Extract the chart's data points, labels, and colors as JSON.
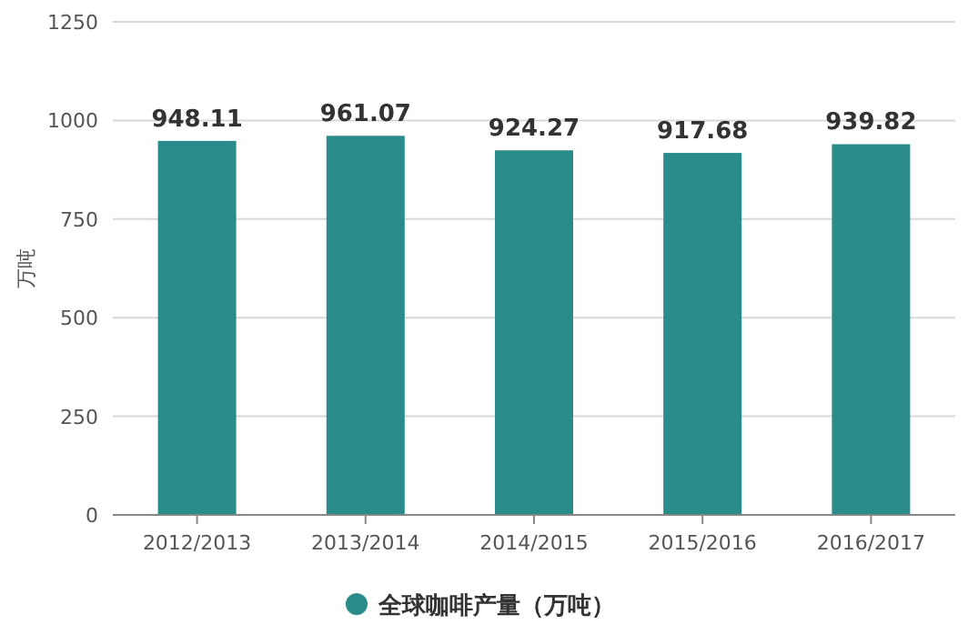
{
  "chart_data": {
    "type": "bar",
    "ylabel": "万吨",
    "categories": [
      "2012/2013",
      "2013/2014",
      "2014/2015",
      "2015/2016",
      "2016/2017"
    ],
    "series": [
      {
        "name": "全球咖啡产量（万吨）",
        "color": "#2a8c8a",
        "values": [
          948.11,
          961.07,
          924.27,
          917.68,
          939.82
        ]
      }
    ],
    "ylim": [
      0,
      1250
    ],
    "yticks": [
      0,
      250,
      500,
      750,
      1000,
      1250
    ],
    "grid": "y",
    "legend": "bottom",
    "data_labels": true
  }
}
